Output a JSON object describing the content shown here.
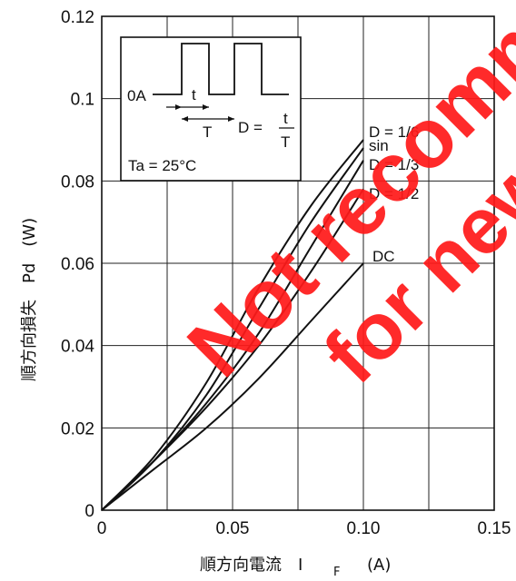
{
  "chart_data": {
    "type": "line",
    "xlabel": "順方向電流　I",
    "xlabel_sub": "F",
    "xlabel_unit": "(A)",
    "ylabel": "順方向損失　Pd　(W)",
    "xlim": [
      0,
      0.15
    ],
    "ylim": [
      0,
      0.12
    ],
    "x_ticks": [
      {
        "v": 0,
        "label": "0"
      },
      {
        "v": 0.05,
        "label": "0.05"
      },
      {
        "v": 0.1,
        "label": "0.10"
      },
      {
        "v": 0.15,
        "label": "0.15"
      }
    ],
    "y_ticks": [
      {
        "v": 0,
        "label": "0"
      },
      {
        "v": 0.02,
        "label": "0.02"
      },
      {
        "v": 0.04,
        "label": "0.04"
      },
      {
        "v": 0.06,
        "label": "0.06"
      },
      {
        "v": 0.08,
        "label": "0.08"
      },
      {
        "v": 0.1,
        "label": "0.1"
      },
      {
        "v": 0.12,
        "label": "0.12"
      }
    ],
    "grid": true,
    "series": [
      {
        "name": "D = 1/6",
        "points": [
          [
            0,
            0
          ],
          [
            0.02,
            0.013
          ],
          [
            0.04,
            0.031
          ],
          [
            0.06,
            0.054
          ],
          [
            0.08,
            0.074
          ],
          [
            0.1,
            0.09
          ]
        ]
      },
      {
        "name": "sin",
        "points": [
          [
            0,
            0
          ],
          [
            0.02,
            0.012
          ],
          [
            0.04,
            0.028
          ],
          [
            0.06,
            0.049
          ],
          [
            0.08,
            0.07
          ],
          [
            0.1,
            0.088
          ]
        ]
      },
      {
        "name": "D = 1/3",
        "points": [
          [
            0,
            0
          ],
          [
            0.02,
            0.012
          ],
          [
            0.04,
            0.026
          ],
          [
            0.06,
            0.043
          ],
          [
            0.08,
            0.064
          ],
          [
            0.1,
            0.085
          ]
        ]
      },
      {
        "name": "D = 1/2",
        "points": [
          [
            0,
            0
          ],
          [
            0.02,
            0.012
          ],
          [
            0.04,
            0.025
          ],
          [
            0.06,
            0.04
          ],
          [
            0.08,
            0.058
          ],
          [
            0.1,
            0.078
          ]
        ]
      },
      {
        "name": "DC",
        "points": [
          [
            0,
            0
          ],
          [
            0.02,
            0.01
          ],
          [
            0.04,
            0.02
          ],
          [
            0.06,
            0.032
          ],
          [
            0.08,
            0.046
          ],
          [
            0.1,
            0.06
          ]
        ]
      }
    ],
    "inset": {
      "zero_label": "0A",
      "t_label": "t",
      "T_label": "T",
      "duty_prefix": "D =",
      "duty_num": "t",
      "duty_den": "T",
      "ambient": "Ta = 25°C"
    },
    "watermark": [
      "Not recommended",
      "for new design"
    ]
  }
}
